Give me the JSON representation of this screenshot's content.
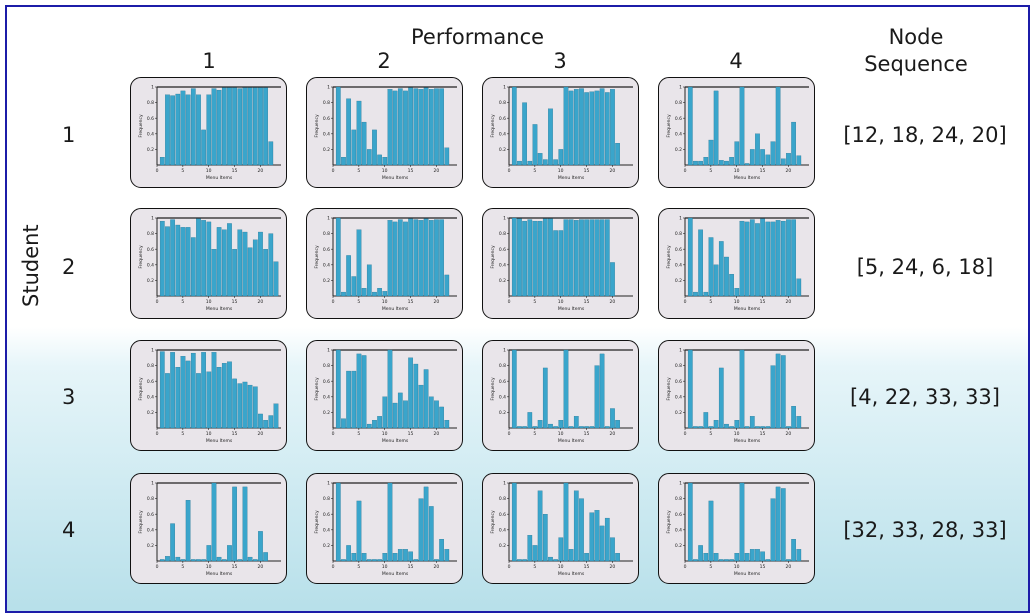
{
  "title": "Performance",
  "student_label": "Student",
  "node_sequence_header": [
    "Node",
    "Sequence"
  ],
  "column_headers": [
    "1",
    "2",
    "3",
    "4"
  ],
  "row_headers": [
    "1",
    "2",
    "3",
    "4"
  ],
  "node_sequences": [
    "[12, 18, 24, 20]",
    "[5, 24, 6, 18]",
    "[4, 22, 33, 33]",
    "[32, 33, 28, 33]"
  ],
  "colors": {
    "bar": "#3aa5cb",
    "bar_edge": "#1d6f8e",
    "panel_bg": "#e9e5ea",
    "border": "#1c1ca8"
  },
  "chart_data": [
    {
      "type": "bar",
      "row": 1,
      "col": 1,
      "xlabel": "Menu Items",
      "ylabel": "Frequency",
      "ylim": [
        0,
        1
      ],
      "xticks": [
        0,
        5,
        10,
        15,
        20
      ],
      "yticks": [
        0.2,
        0.4,
        0.6,
        0.8,
        1
      ],
      "values": [
        0.1,
        0.9,
        0.89,
        0.91,
        0.95,
        0.9,
        0.98,
        0.9,
        0.45,
        0.9,
        0.98,
        0.96,
        0.99,
        0.99,
        0.99,
        0.98,
        0.99,
        0.99,
        0.99,
        0.99,
        0.99,
        0.3
      ]
    },
    {
      "type": "bar",
      "row": 1,
      "col": 2,
      "xlabel": "Menu Items",
      "ylabel": "Frequency",
      "ylim": [
        0,
        1
      ],
      "xticks": [
        0,
        5,
        10,
        15,
        20
      ],
      "yticks": [
        0.2,
        0.4,
        0.6,
        0.8,
        1
      ],
      "values": [
        1.0,
        0.1,
        0.85,
        0.45,
        0.82,
        0.55,
        0.2,
        0.45,
        0.13,
        0.1,
        0.97,
        0.95,
        0.98,
        0.95,
        0.99,
        0.98,
        0.97,
        0.99,
        0.97,
        0.98,
        0.98,
        0.22
      ]
    },
    {
      "type": "bar",
      "row": 1,
      "col": 3,
      "xlabel": "Menu Items",
      "ylabel": "Frequency",
      "ylim": [
        0,
        1
      ],
      "xticks": [
        0,
        5,
        10,
        15,
        20
      ],
      "yticks": [
        0.2,
        0.4,
        0.6,
        0.8,
        1
      ],
      "values": [
        1.0,
        0.05,
        0.8,
        0.05,
        0.52,
        0.15,
        0.07,
        0.72,
        0.07,
        0.2,
        1.0,
        0.95,
        0.97,
        0.98,
        0.93,
        0.94,
        0.95,
        0.98,
        0.93,
        0.97,
        0.28
      ]
    },
    {
      "type": "bar",
      "row": 1,
      "col": 4,
      "xlabel": "Menu Items",
      "ylabel": "Frequency",
      "ylim": [
        0,
        1
      ],
      "xticks": [
        0,
        5,
        10,
        15,
        20
      ],
      "yticks": [
        0.2,
        0.4,
        0.6,
        0.8,
        1
      ],
      "values": [
        1.0,
        0.05,
        0.05,
        0.1,
        0.32,
        0.95,
        0.06,
        0.05,
        0.1,
        0.3,
        1.0,
        0.02,
        0.2,
        0.4,
        0.2,
        0.13,
        0.3,
        1.0,
        0.08,
        0.15,
        0.55,
        0.12
      ]
    },
    {
      "type": "bar",
      "row": 2,
      "col": 1,
      "xlabel": "Menu Items",
      "ylabel": "Frequency",
      "ylim": [
        0,
        1
      ],
      "xticks": [
        0,
        5,
        10,
        15,
        20
      ],
      "yticks": [
        0.2,
        0.4,
        0.6,
        0.8,
        1
      ],
      "values": [
        0.96,
        0.89,
        0.98,
        0.91,
        0.88,
        0.88,
        0.75,
        0.99,
        0.97,
        0.95,
        0.6,
        0.88,
        0.85,
        0.93,
        0.6,
        0.85,
        0.82,
        0.62,
        0.72,
        0.82,
        0.6,
        0.8,
        0.44
      ]
    },
    {
      "type": "bar",
      "row": 2,
      "col": 2,
      "xlabel": "Menu Items",
      "ylabel": "Frequency",
      "ylim": [
        0,
        1
      ],
      "xticks": [
        0,
        5,
        10,
        15,
        20
      ],
      "yticks": [
        0.2,
        0.4,
        0.6,
        0.8,
        1
      ],
      "values": [
        1.0,
        0.05,
        0.52,
        0.25,
        0.85,
        0.1,
        0.4,
        0.05,
        0.1,
        0.06,
        0.97,
        0.95,
        0.98,
        0.95,
        0.99,
        0.98,
        0.97,
        0.99,
        0.97,
        0.98,
        0.98,
        0.27
      ]
    },
    {
      "type": "bar",
      "row": 2,
      "col": 3,
      "xlabel": "Menu Items",
      "ylabel": "Frequency",
      "ylim": [
        0,
        1
      ],
      "xticks": [
        0,
        5,
        10,
        15,
        20
      ],
      "yticks": [
        0.2,
        0.4,
        0.6,
        0.8,
        1
      ],
      "values": [
        1.0,
        0.99,
        0.96,
        0.98,
        0.96,
        0.96,
        0.99,
        0.99,
        0.84,
        0.84,
        0.98,
        0.98,
        0.97,
        0.98,
        0.98,
        0.98,
        0.98,
        0.98,
        0.98,
        0.43
      ]
    },
    {
      "type": "bar",
      "row": 2,
      "col": 4,
      "xlabel": "Menu Items",
      "ylabel": "Frequency",
      "ylim": [
        0,
        1
      ],
      "xticks": [
        0,
        5,
        10,
        15,
        20
      ],
      "yticks": [
        0.2,
        0.4,
        0.6,
        0.8,
        1
      ],
      "values": [
        1.0,
        0.05,
        0.85,
        0.05,
        0.75,
        0.4,
        0.7,
        0.5,
        0.28,
        0.1,
        0.96,
        0.95,
        0.98,
        0.93,
        0.99,
        0.95,
        0.95,
        0.97,
        0.96,
        0.98,
        0.98,
        0.22
      ]
    },
    {
      "type": "bar",
      "row": 3,
      "col": 1,
      "xlabel": "Menu Items",
      "ylabel": "Frequency",
      "ylim": [
        0,
        1
      ],
      "xticks": [
        0,
        5,
        10,
        15,
        20
      ],
      "yticks": [
        0.2,
        0.4,
        0.6,
        0.8,
        1
      ],
      "values": [
        0.98,
        0.7,
        0.97,
        0.78,
        0.92,
        0.86,
        0.96,
        0.7,
        0.97,
        0.72,
        0.97,
        0.78,
        0.83,
        0.85,
        0.63,
        0.57,
        0.59,
        0.55,
        0.53,
        0.18,
        0.1,
        0.16,
        0.31
      ]
    },
    {
      "type": "bar",
      "row": 3,
      "col": 2,
      "xlabel": "Menu Items",
      "ylabel": "Frequency",
      "ylim": [
        0,
        1
      ],
      "xticks": [
        0,
        5,
        10,
        15,
        20
      ],
      "yticks": [
        0.2,
        0.4,
        0.6,
        0.8,
        1
      ],
      "values": [
        1.0,
        0.12,
        0.73,
        0.73,
        0.95,
        0.93,
        0.05,
        0.1,
        0.15,
        0.4,
        1.0,
        0.32,
        0.45,
        0.35,
        0.9,
        0.82,
        0.55,
        0.75,
        0.4,
        0.35,
        0.27,
        0.1
      ]
    },
    {
      "type": "bar",
      "row": 3,
      "col": 3,
      "xlabel": "Menu Items",
      "ylabel": "Frequency",
      "ylim": [
        0,
        1
      ],
      "xticks": [
        0,
        5,
        10,
        15,
        20
      ],
      "yticks": [
        0.2,
        0.4,
        0.6,
        0.8,
        1
      ],
      "values": [
        1.0,
        0.02,
        0.02,
        0.2,
        0.02,
        0.1,
        0.77,
        0.05,
        0.02,
        0.1,
        1.0,
        0.02,
        0.15,
        0.02,
        0.02,
        0.02,
        0.8,
        0.95,
        0.02,
        0.25,
        0.1
      ]
    },
    {
      "type": "bar",
      "row": 3,
      "col": 4,
      "xlabel": "Menu Items",
      "ylabel": "Frequency",
      "ylim": [
        0,
        1
      ],
      "xticks": [
        0,
        5,
        10,
        15,
        20
      ],
      "yticks": [
        0.2,
        0.4,
        0.6,
        0.8,
        1
      ],
      "values": [
        1.0,
        0.02,
        0.02,
        0.2,
        0.02,
        0.1,
        0.77,
        0.05,
        0.02,
        0.1,
        1.0,
        0.02,
        0.15,
        0.02,
        0.02,
        0.02,
        0.8,
        0.95,
        0.93,
        0.02,
        0.28,
        0.15
      ]
    },
    {
      "type": "bar",
      "row": 4,
      "col": 1,
      "xlabel": "Menu Items",
      "ylabel": "Frequency",
      "ylim": [
        0,
        1
      ],
      "xticks": [
        0,
        5,
        10,
        15,
        20
      ],
      "yticks": [
        0.2,
        0.4,
        0.6,
        0.8,
        1
      ],
      "values": [
        0.02,
        0.06,
        0.48,
        0.05,
        0.02,
        0.78,
        0.02,
        0.02,
        0.02,
        0.2,
        1.0,
        0.05,
        0.02,
        0.2,
        0.95,
        0.02,
        0.95,
        0.05,
        0.02,
        0.38,
        0.11
      ]
    },
    {
      "type": "bar",
      "row": 4,
      "col": 2,
      "xlabel": "Menu Items",
      "ylabel": "Frequency",
      "ylim": [
        0,
        1
      ],
      "xticks": [
        0,
        5,
        10,
        15,
        20
      ],
      "yticks": [
        0.2,
        0.4,
        0.6,
        0.8,
        1
      ],
      "values": [
        1.0,
        0.02,
        0.2,
        0.1,
        0.77,
        0.1,
        0.02,
        0.02,
        0.02,
        0.1,
        1.0,
        0.1,
        0.15,
        0.15,
        0.12,
        0.02,
        0.8,
        0.95,
        0.7,
        0.02,
        0.28,
        0.15
      ]
    },
    {
      "type": "bar",
      "row": 4,
      "col": 3,
      "xlabel": "Menu Items",
      "ylabel": "Frequency",
      "ylim": [
        0,
        1
      ],
      "xticks": [
        0,
        5,
        10,
        15,
        20
      ],
      "yticks": [
        0.2,
        0.4,
        0.6,
        0.8,
        1
      ],
      "values": [
        1.0,
        0.02,
        0.02,
        0.33,
        0.2,
        0.9,
        0.6,
        0.05,
        0.02,
        0.3,
        1.0,
        0.15,
        0.9,
        0.8,
        0.1,
        0.62,
        0.65,
        0.45,
        0.55,
        0.3,
        0.1
      ]
    },
    {
      "type": "bar",
      "row": 4,
      "col": 4,
      "xlabel": "Menu Items",
      "ylabel": "Frequency",
      "ylim": [
        0,
        1
      ],
      "xticks": [
        0,
        5,
        10,
        15,
        20
      ],
      "yticks": [
        0.2,
        0.4,
        0.6,
        0.8,
        1
      ],
      "values": [
        1.0,
        0.02,
        0.2,
        0.1,
        0.77,
        0.1,
        0.02,
        0.02,
        0.02,
        0.1,
        1.0,
        0.1,
        0.15,
        0.15,
        0.12,
        0.02,
        0.8,
        0.95,
        0.93,
        0.02,
        0.28,
        0.15
      ]
    }
  ]
}
